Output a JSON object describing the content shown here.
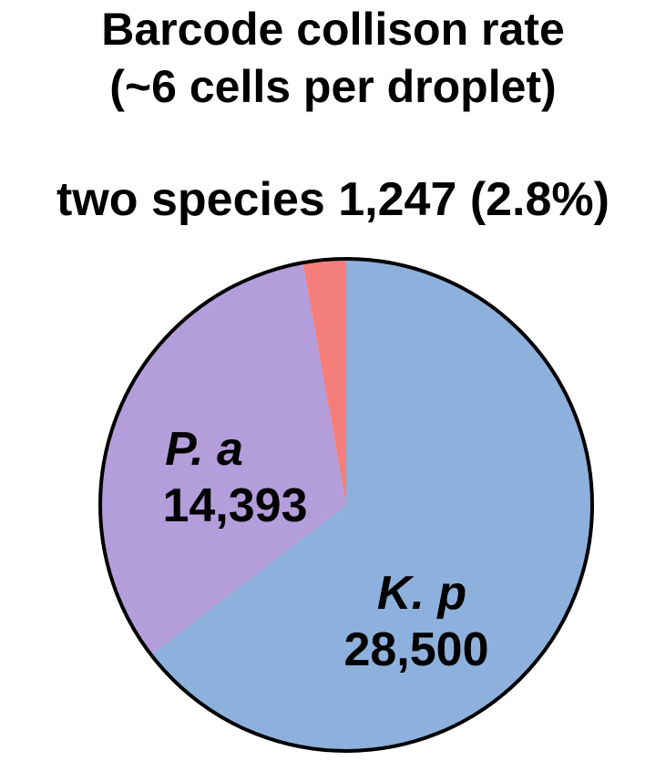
{
  "chart_data": {
    "type": "pie",
    "title": "Barcode collison rate",
    "subtitle": "(~6 cells per droplet)",
    "annotation": "two species 1,247 (2.8%)",
    "slices": [
      {
        "name": "K. p",
        "value": 28500,
        "value_label": "28,500",
        "color": "#8eb0dc"
      },
      {
        "name": "P. a",
        "value": 14393,
        "value_label": "14,393",
        "color": "#b39ddb"
      },
      {
        "name": "",
        "value": 1247,
        "value_label": "",
        "color": "#f47f7a"
      }
    ],
    "start": "top",
    "direction": "clockwise",
    "outline_color": "#000000"
  }
}
